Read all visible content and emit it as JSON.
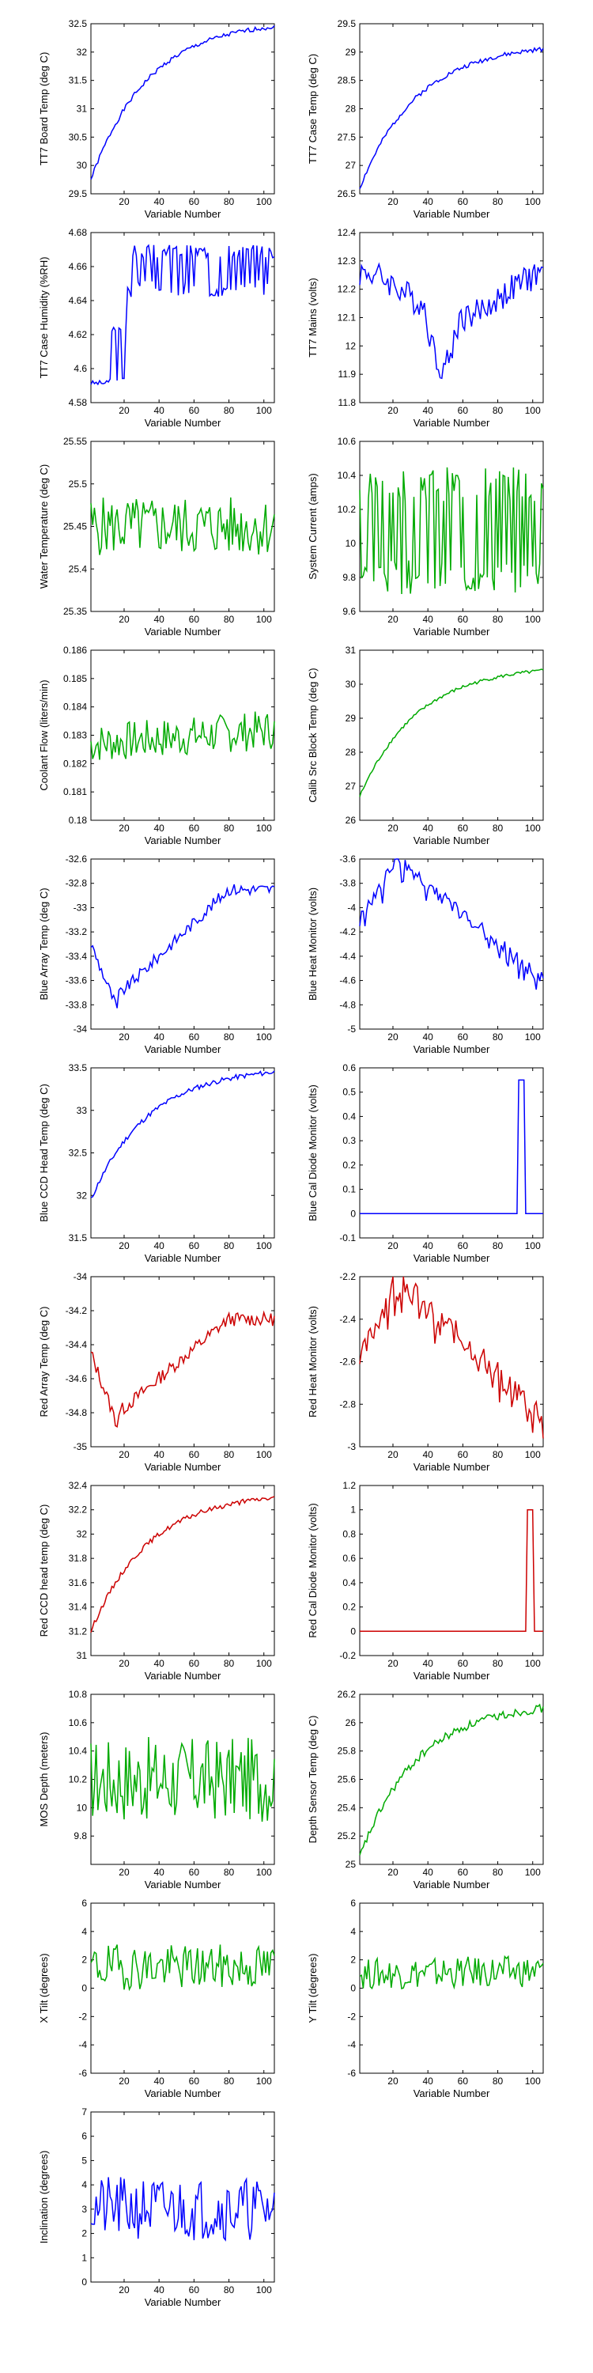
{
  "colors": {
    "blue": "#0000ff",
    "green": "#00aa00",
    "red": "#cc0000",
    "axis": "#000000"
  },
  "chart_data": [
    {
      "type": "line",
      "xlabel": "Variable Number",
      "ylabel": "TT7 Board Temp (deg C)",
      "color": "blue",
      "xlim": [
        1,
        106
      ],
      "ylim": [
        29.5,
        32.5
      ],
      "xticks": [
        20,
        40,
        60,
        80,
        100
      ],
      "yticks": [
        29.5,
        30,
        30.5,
        31,
        31.5,
        32,
        32.5
      ],
      "yticklabels": [
        "29.5",
        "30",
        "30.5",
        "31",
        "31.5",
        "32",
        "32.5"
      ],
      "shape": "rise_sat",
      "start": 29.75,
      "end": 32.45,
      "noise": 0.04,
      "seed": 1
    },
    {
      "type": "line",
      "xlabel": "Variable Number",
      "ylabel": "TT7 Case Temp (deg C)",
      "color": "blue",
      "xlim": [
        1,
        106
      ],
      "ylim": [
        26.5,
        29.5
      ],
      "xticks": [
        20,
        40,
        60,
        80,
        100
      ],
      "yticks": [
        26.5,
        27,
        27.5,
        28,
        28.5,
        29,
        29.5
      ],
      "yticklabels": [
        "26.5",
        "27",
        "27.5",
        "28",
        "28.5",
        "29",
        "29.5"
      ],
      "shape": "rise_sat",
      "start": 26.6,
      "end": 29.05,
      "noise": 0.04,
      "seed": 2
    },
    {
      "type": "line",
      "xlabel": "Variable Number",
      "ylabel": "TT7 Case Humidity (%RH)",
      "color": "blue",
      "xlim": [
        1,
        106
      ],
      "ylim": [
        4.58,
        4.68
      ],
      "xticks": [
        20,
        40,
        60,
        80,
        100
      ],
      "yticks": [
        4.58,
        4.6,
        4.62,
        4.64,
        4.66,
        4.68
      ],
      "yticklabels": [
        "4.58",
        "4.6",
        "4.62",
        "4.64",
        "4.66",
        "4.68"
      ],
      "shape": "humidity",
      "start": 4.59,
      "end": 4.67,
      "noise": 0.0,
      "seed": 3
    },
    {
      "type": "line",
      "xlabel": "Variable Number",
      "ylabel": "TT7 Mains (volts)",
      "color": "blue",
      "xlim": [
        1,
        106
      ],
      "ylim": [
        11.8,
        12.4
      ],
      "xticks": [
        20,
        40,
        60,
        80,
        100
      ],
      "yticks": [
        11.8,
        11.9,
        12,
        12.1,
        12.2,
        12.3,
        12.4
      ],
      "yticklabels": [
        "11.8",
        "11.9",
        "12",
        "12.1",
        "12.2",
        "12.3",
        "12.4"
      ],
      "shape": "mains",
      "start": 12.2,
      "end": 12.2,
      "noise": 0.05,
      "seed": 4
    },
    {
      "type": "line",
      "xlabel": "Variable Number",
      "ylabel": "Water Temperature (deg C)",
      "color": "green",
      "xlim": [
        1,
        106
      ],
      "ylim": [
        25.35,
        25.55
      ],
      "xticks": [
        20,
        40,
        60,
        80,
        100
      ],
      "yticks": [
        25.35,
        25.4,
        25.45,
        25.5,
        25.55
      ],
      "yticklabels": [
        "25.35",
        "25.4",
        "25.45",
        "25.5",
        "25.55"
      ],
      "shape": "noise",
      "start": 25.45,
      "end": 25.45,
      "noise": 0.035,
      "seed": 5
    },
    {
      "type": "line",
      "xlabel": "Variable Number",
      "ylabel": "System Current (amps)",
      "color": "green",
      "xlim": [
        1,
        106
      ],
      "ylim": [
        9.6,
        10.6
      ],
      "xticks": [
        20,
        40,
        60,
        80,
        100
      ],
      "yticks": [
        9.6,
        9.8,
        10,
        10.2,
        10.4,
        10.6
      ],
      "yticklabels": [
        "9.6",
        "9.8",
        "10",
        "10.2",
        "10.4",
        "10.6"
      ],
      "shape": "square",
      "start": 10.1,
      "end": 10.1,
      "noise": 0.3,
      "seed": 6
    },
    {
      "type": "line",
      "xlabel": "Variable Number",
      "ylabel": "Coolant Flow (liters/min)",
      "color": "green",
      "xlim": [
        1,
        106
      ],
      "ylim": [
        0.18,
        0.186
      ],
      "xticks": [
        20,
        40,
        60,
        80,
        100
      ],
      "yticks": [
        0.18,
        0.181,
        0.182,
        0.183,
        0.184,
        0.185,
        0.186
      ],
      "yticklabels": [
        "0.18",
        "0.181",
        "0.182",
        "0.183",
        "0.184",
        "0.185",
        "0.186"
      ],
      "shape": "noise",
      "start": 0.1827,
      "end": 0.1832,
      "noise": 0.0007,
      "seed": 7
    },
    {
      "type": "line",
      "xlabel": "Variable Number",
      "ylabel": "Calib Src Block Temp (deg C)",
      "color": "green",
      "xlim": [
        1,
        106
      ],
      "ylim": [
        26,
        31
      ],
      "xticks": [
        20,
        40,
        60,
        80,
        100
      ],
      "yticks": [
        26,
        27,
        28,
        29,
        30,
        31
      ],
      "yticklabels": [
        "26",
        "27",
        "28",
        "29",
        "30",
        "31"
      ],
      "shape": "rise_sat",
      "start": 26.7,
      "end": 30.4,
      "noise": 0.05,
      "seed": 8
    },
    {
      "type": "line",
      "xlabel": "Variable Number",
      "ylabel": "Blue Array Temp (deg C)",
      "color": "blue",
      "xlim": [
        1,
        106
      ],
      "ylim": [
        -34,
        -32.6
      ],
      "xticks": [
        20,
        40,
        60,
        80,
        100
      ],
      "yticks": [
        -34,
        -33.8,
        -33.6,
        -33.4,
        -33.2,
        -33,
        -32.8,
        -32.6
      ],
      "yticklabels": [
        "-34",
        "-33.8",
        "-33.6",
        "-33.4",
        "-33.2",
        "-33",
        "-32.8",
        "-32.6"
      ],
      "shape": "dip_rise",
      "start": -33.3,
      "end": -32.85,
      "noise": 0.05,
      "seed": 9
    },
    {
      "type": "line",
      "xlabel": "Variable Number",
      "ylabel": "Blue Heat Monitor (volts)",
      "color": "blue",
      "xlim": [
        1,
        106
      ],
      "ylim": [
        -5,
        -3.6
      ],
      "xticks": [
        20,
        40,
        60,
        80,
        100
      ],
      "yticks": [
        -5,
        -4.8,
        -4.6,
        -4.4,
        -4.2,
        -4,
        -3.8,
        -3.6
      ],
      "yticklabels": [
        "-5",
        "-4.8",
        "-4.6",
        "-4.4",
        "-4.2",
        "-4",
        "-3.8",
        "-3.6"
      ],
      "shape": "peak_fall",
      "start": -4.1,
      "end": -4.6,
      "noise": 0.06,
      "seed": 10
    },
    {
      "type": "line",
      "xlabel": "Variable Number",
      "ylabel": "Blue CCD Head Temp (deg C)",
      "color": "blue",
      "xlim": [
        1,
        106
      ],
      "ylim": [
        31.5,
        33.5
      ],
      "xticks": [
        20,
        40,
        60,
        80,
        100
      ],
      "yticks": [
        31.5,
        32,
        32.5,
        33,
        33.5
      ],
      "yticklabels": [
        "31.5",
        "32",
        "32.5",
        "33",
        "33.5"
      ],
      "shape": "rise_sat",
      "start": 31.95,
      "end": 33.45,
      "noise": 0.03,
      "seed": 11
    },
    {
      "type": "line",
      "xlabel": "Variable Number",
      "ylabel": "Blue Cal Diode Monitor (volts)",
      "color": "blue",
      "xlim": [
        1,
        106
      ],
      "ylim": [
        -0.1,
        0.6
      ],
      "xticks": [
        20,
        40,
        60,
        80,
        100
      ],
      "yticks": [
        -0.1,
        0,
        0.1,
        0.2,
        0.3,
        0.4,
        0.5,
        0.6
      ],
      "yticklabels": [
        "-0.1",
        "0",
        "0.1",
        "0.2",
        "0.3",
        "0.4",
        "0.5",
        "0.6"
      ],
      "shape": "spike",
      "spike_at": [
        92,
        95
      ],
      "spike_val": 0.55,
      "start": 0,
      "end": 0,
      "noise": 0.0,
      "seed": 12
    },
    {
      "type": "line",
      "xlabel": "Variable Number",
      "ylabel": "Red Array Temp (deg C)",
      "color": "red",
      "xlim": [
        1,
        106
      ],
      "ylim": [
        -35,
        -34
      ],
      "xticks": [
        20,
        40,
        60,
        80,
        100
      ],
      "yticks": [
        -35,
        -34.8,
        -34.6,
        -34.4,
        -34.2,
        -34
      ],
      "yticklabels": [
        "-35",
        "-34.8",
        "-34.6",
        "-34.4",
        "-34.2",
        "-34"
      ],
      "shape": "dip_rise",
      "start": -34.45,
      "end": -34.25,
      "noise": 0.04,
      "seed": 13
    },
    {
      "type": "line",
      "xlabel": "Variable Number",
      "ylabel": "Red Heat Monitor (volts)",
      "color": "red",
      "xlim": [
        1,
        106
      ],
      "ylim": [
        -3,
        -2.2
      ],
      "xticks": [
        20,
        40,
        60,
        80,
        100
      ],
      "yticks": [
        -3,
        -2.8,
        -2.6,
        -2.4,
        -2.2
      ],
      "yticklabels": [
        "-3",
        "-2.8",
        "-2.6",
        "-2.4",
        "-2.2"
      ],
      "shape": "peak_fall",
      "start": -2.6,
      "end": -2.85,
      "noise": 0.06,
      "seed": 14
    },
    {
      "type": "line",
      "xlabel": "Variable Number",
      "ylabel": "Red CCD head temp (deg C)",
      "color": "red",
      "xlim": [
        1,
        106
      ],
      "ylim": [
        31,
        32.4
      ],
      "xticks": [
        20,
        40,
        60,
        80,
        100
      ],
      "yticks": [
        31,
        31.2,
        31.4,
        31.6,
        31.8,
        32,
        32.2,
        32.4
      ],
      "yticklabels": [
        "31",
        "31.2",
        "31.4",
        "31.6",
        "31.8",
        "32",
        "32.2",
        "32.4"
      ],
      "shape": "rise_sat",
      "start": 31.2,
      "end": 32.3,
      "noise": 0.02,
      "seed": 15
    },
    {
      "type": "line",
      "xlabel": "Variable Number",
      "ylabel": "Red Cal Diode Monitor (volts)",
      "color": "red",
      "xlim": [
        1,
        106
      ],
      "ylim": [
        -0.2,
        1.2
      ],
      "xticks": [
        20,
        40,
        60,
        80,
        100
      ],
      "yticks": [
        -0.2,
        0,
        0.2,
        0.4,
        0.6,
        0.8,
        1,
        1.2
      ],
      "yticklabels": [
        "-0.2",
        "0",
        "0.2",
        "0.4",
        "0.6",
        "0.8",
        "1",
        "1.2"
      ],
      "shape": "spike",
      "spike_at": [
        97,
        100
      ],
      "spike_val": 1.0,
      "start": 0,
      "end": 0,
      "noise": 0.0,
      "seed": 16
    },
    {
      "type": "line",
      "xlabel": "Variable Number",
      "ylabel": "MOS Depth (meters)",
      "color": "green",
      "xlim": [
        1,
        106
      ],
      "ylim": [
        9.6,
        10.8
      ],
      "xticks": [
        20,
        40,
        60,
        80,
        100
      ],
      "yticks": [
        9.8,
        10,
        10.2,
        10.4,
        10.6,
        10.8
      ],
      "yticklabels": [
        "9.8",
        "10",
        "10.2",
        "10.4",
        "10.6",
        "10.8"
      ],
      "shape": "noise",
      "start": 10.2,
      "end": 10.2,
      "noise": 0.3,
      "seed": 17
    },
    {
      "type": "line",
      "xlabel": "Variable Number",
      "ylabel": "Depth Sensor Temp (deg C)",
      "color": "green",
      "xlim": [
        1,
        106
      ],
      "ylim": [
        25,
        26.2
      ],
      "xticks": [
        20,
        40,
        60,
        80,
        100
      ],
      "yticks": [
        25,
        25.2,
        25.4,
        25.6,
        25.8,
        26,
        26.2
      ],
      "yticklabels": [
        "25",
        "25.2",
        "25.4",
        "25.6",
        "25.8",
        "26",
        "26.2"
      ],
      "shape": "rise_sat",
      "start": 25.05,
      "end": 26.1,
      "noise": 0.03,
      "seed": 18
    },
    {
      "type": "line",
      "xlabel": "Variable Number",
      "ylabel": "X Tilt (degrees)",
      "color": "green",
      "xlim": [
        1,
        106
      ],
      "ylim": [
        -6,
        6
      ],
      "xticks": [
        20,
        40,
        60,
        80,
        100
      ],
      "yticks": [
        -6,
        -4,
        -2,
        0,
        2,
        4,
        6
      ],
      "yticklabels": [
        "-6",
        "-4",
        "-2",
        "0",
        "2",
        "4",
        "6"
      ],
      "shape": "noise",
      "start": 1.5,
      "end": 1.5,
      "noise": 1.6,
      "seed": 19
    },
    {
      "type": "line",
      "xlabel": "Variable Number",
      "ylabel": "Y Tilt (degrees)",
      "color": "green",
      "xlim": [
        1,
        106
      ],
      "ylim": [
        -6,
        6
      ],
      "xticks": [
        20,
        40,
        60,
        80,
        100
      ],
      "yticks": [
        -6,
        -4,
        -2,
        0,
        2,
        4,
        6
      ],
      "yticklabels": [
        "-6",
        "-4",
        "-2",
        "0",
        "2",
        "4",
        "6"
      ],
      "shape": "noise",
      "start": 1.0,
      "end": 1.2,
      "noise": 1.1,
      "seed": 20
    },
    {
      "type": "line",
      "xlabel": "Variable Number",
      "ylabel": "Inclination (degrees)",
      "color": "blue",
      "xlim": [
        1,
        106
      ],
      "ylim": [
        0,
        7
      ],
      "xticks": [
        20,
        40,
        60,
        80,
        100
      ],
      "yticks": [
        0,
        1,
        2,
        3,
        4,
        5,
        6,
        7
      ],
      "yticklabels": [
        "0",
        "1",
        "2",
        "3",
        "4",
        "5",
        "6",
        "7"
      ],
      "shape": "noise_pos",
      "start": 2.5,
      "end": 2.5,
      "noise": 1.3,
      "seed": 21
    }
  ]
}
